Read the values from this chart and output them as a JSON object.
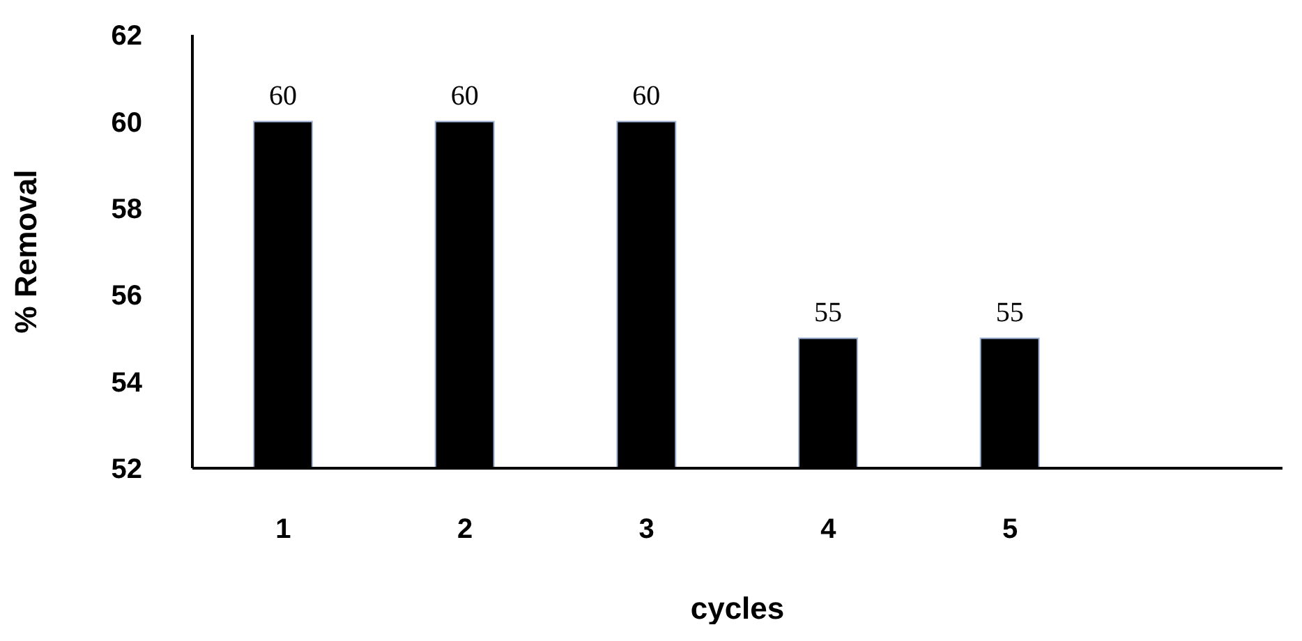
{
  "chart_data": {
    "type": "bar",
    "xlabel": "cycles",
    "ylabel": "% Removal",
    "categories": [
      "1",
      "2",
      "3",
      "4",
      "5",
      null
    ],
    "values": [
      60,
      60,
      60,
      55,
      55,
      null
    ],
    "color": "#000000",
    "ylim": [
      52,
      62
    ],
    "yticks": [
      52,
      54,
      56,
      58,
      60,
      62
    ],
    "data_labels": true
  }
}
